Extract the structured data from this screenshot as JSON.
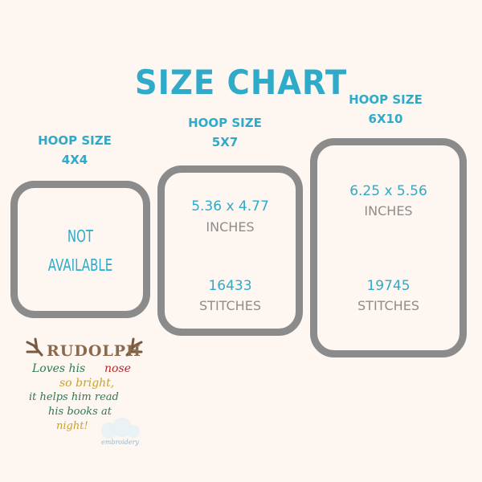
{
  "title": "SIZE CHART",
  "colors": {
    "accent": "#2faac9",
    "frame": "#8b8b8b",
    "text_gray": "#8d8d8d",
    "background": "#fdf6f1"
  },
  "hoops": [
    {
      "label": "HOOP SIZE",
      "size": "4X4",
      "lines": [
        "NOT",
        "AVAILABLE"
      ]
    },
    {
      "label": "HOOP SIZE",
      "size": "5X7",
      "dimensions": "5.36 x 4.77",
      "dimensions_unit": "INCHES",
      "stitches": "16433",
      "stitches_unit": "STITCHES"
    },
    {
      "label": "HOOP SIZE",
      "size": "6X10",
      "dimensions": "6.25 x 5.56",
      "dimensions_unit": "INCHES",
      "stitches": "19745",
      "stitches_unit": "STITCHES"
    }
  ],
  "design": {
    "heading": "RUDOLPH",
    "lines": [
      "Loves his",
      "nose",
      "so bright,",
      "it helps him read",
      "his books at",
      "night!"
    ],
    "watermark": "embroidery"
  }
}
